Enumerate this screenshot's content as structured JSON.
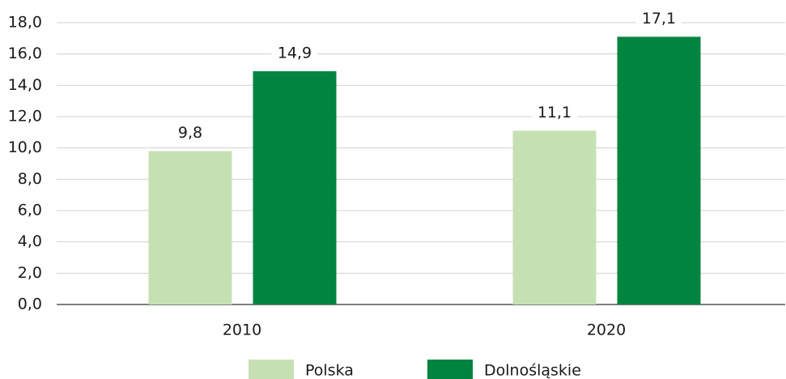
{
  "chart_data": {
    "type": "bar",
    "categories": [
      "2010",
      "2020"
    ],
    "series": [
      {
        "name": "Polska",
        "color": "#c6e0b4",
        "values": [
          9.8,
          11.1
        ],
        "value_labels": [
          "9,8",
          "11,1"
        ]
      },
      {
        "name": "Dolnośląskie",
        "color": "#00843f",
        "values": [
          14.9,
          17.1
        ],
        "value_labels": [
          "14,9",
          "17,1"
        ]
      }
    ],
    "ylim": [
      0,
      18
    ],
    "yticks": [
      {
        "value": 0,
        "label": "0,0"
      },
      {
        "value": 2,
        "label": "2,0"
      },
      {
        "value": 4,
        "label": "4,0"
      },
      {
        "value": 6,
        "label": "6,0"
      },
      {
        "value": 8,
        "label": "8,0"
      },
      {
        "value": 10,
        "label": "10,0"
      },
      {
        "value": 12,
        "label": "12,0"
      },
      {
        "value": 14,
        "label": "14,0"
      },
      {
        "value": 16,
        "label": "16,0"
      },
      {
        "value": 18,
        "label": "18,0"
      }
    ],
    "grid": true,
    "legend": "bottom"
  }
}
